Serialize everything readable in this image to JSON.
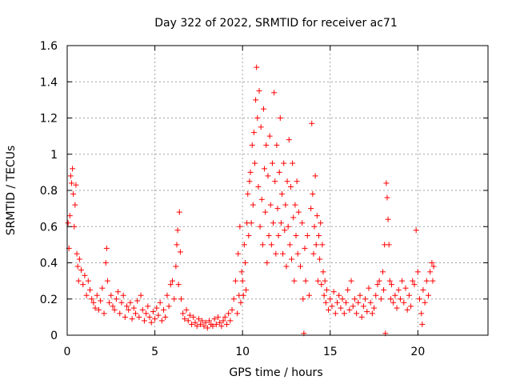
{
  "chart_data": {
    "type": "scatter",
    "title": "Day 322 of 2022, SRMTID for receiver ac71",
    "xlabel": "GPS time / hours",
    "ylabel": "SRMTID / TECUs",
    "xlim": [
      0,
      24
    ],
    "ylim": [
      0,
      1.6
    ],
    "xticks": [
      0,
      5,
      10,
      15,
      20
    ],
    "yticks": [
      0,
      0.2,
      0.4,
      0.6,
      0.8,
      1,
      1.2,
      1.4,
      1.6
    ],
    "xtick_labels": [
      "0",
      "5",
      "10",
      "15",
      "20"
    ],
    "ytick_labels": [
      "0",
      "0.2",
      "0.4",
      "0.6",
      "0.8",
      "1",
      "1.2",
      "1.4",
      "1.6"
    ],
    "grid": true,
    "marker": "plus",
    "color": "#ff0000",
    "series": [
      {
        "name": "SRMTID",
        "points": [
          [
            0.05,
            0.62
          ],
          [
            0.1,
            0.48
          ],
          [
            0.15,
            0.66
          ],
          [
            0.2,
            0.88
          ],
          [
            0.25,
            0.84
          ],
          [
            0.3,
            0.92
          ],
          [
            0.35,
            0.78
          ],
          [
            0.4,
            0.6
          ],
          [
            0.45,
            0.72
          ],
          [
            0.5,
            0.83
          ],
          [
            0.55,
            0.45
          ],
          [
            0.6,
            0.38
          ],
          [
            0.65,
            0.3
          ],
          [
            0.7,
            0.42
          ],
          [
            0.8,
            0.36
          ],
          [
            0.9,
            0.28
          ],
          [
            1.0,
            0.33
          ],
          [
            1.1,
            0.22
          ],
          [
            1.2,
            0.3
          ],
          [
            1.3,
            0.25
          ],
          [
            1.4,
            0.2
          ],
          [
            1.5,
            0.18
          ],
          [
            1.6,
            0.15
          ],
          [
            1.7,
            0.22
          ],
          [
            1.8,
            0.14
          ],
          [
            1.9,
            0.19
          ],
          [
            2.0,
            0.26
          ],
          [
            2.1,
            0.12
          ],
          [
            2.2,
            0.4
          ],
          [
            2.25,
            0.48
          ],
          [
            2.3,
            0.3
          ],
          [
            2.4,
            0.18
          ],
          [
            2.5,
            0.22
          ],
          [
            2.6,
            0.16
          ],
          [
            2.7,
            0.14
          ],
          [
            2.8,
            0.2
          ],
          [
            2.9,
            0.24
          ],
          [
            3.0,
            0.12
          ],
          [
            3.1,
            0.18
          ],
          [
            3.2,
            0.22
          ],
          [
            3.3,
            0.1
          ],
          [
            3.4,
            0.16
          ],
          [
            3.5,
            0.14
          ],
          [
            3.6,
            0.18
          ],
          [
            3.7,
            0.09
          ],
          [
            3.8,
            0.15
          ],
          [
            3.9,
            0.12
          ],
          [
            4.0,
            0.19
          ],
          [
            4.1,
            0.1
          ],
          [
            4.2,
            0.22
          ],
          [
            4.3,
            0.14
          ],
          [
            4.4,
            0.08
          ],
          [
            4.5,
            0.12
          ],
          [
            4.6,
            0.16
          ],
          [
            4.7,
            0.1
          ],
          [
            4.8,
            0.07
          ],
          [
            4.9,
            0.13
          ],
          [
            5.0,
            0.09
          ],
          [
            5.1,
            0.15
          ],
          [
            5.2,
            0.11
          ],
          [
            5.3,
            0.18
          ],
          [
            5.4,
            0.08
          ],
          [
            5.5,
            0.14
          ],
          [
            5.6,
            0.1
          ],
          [
            5.7,
            0.22
          ],
          [
            5.8,
            0.16
          ],
          [
            5.9,
            0.28
          ],
          [
            6.0,
            0.3
          ],
          [
            6.1,
            0.2
          ],
          [
            6.2,
            0.38
          ],
          [
            6.25,
            0.5
          ],
          [
            6.3,
            0.58
          ],
          [
            6.35,
            0.28
          ],
          [
            6.4,
            0.68
          ],
          [
            6.45,
            0.46
          ],
          [
            6.5,
            0.2
          ],
          [
            6.6,
            0.12
          ],
          [
            6.7,
            0.09
          ],
          [
            6.8,
            0.14
          ],
          [
            6.9,
            0.08
          ],
          [
            7.0,
            0.11
          ],
          [
            7.1,
            0.06
          ],
          [
            7.2,
            0.1
          ],
          [
            7.3,
            0.07
          ],
          [
            7.4,
            0.05
          ],
          [
            7.5,
            0.09
          ],
          [
            7.6,
            0.06
          ],
          [
            7.7,
            0.08
          ],
          [
            7.8,
            0.05
          ],
          [
            7.9,
            0.07
          ],
          [
            8.0,
            0.04
          ],
          [
            8.1,
            0.08
          ],
          [
            8.2,
            0.06
          ],
          [
            8.3,
            0.05
          ],
          [
            8.4,
            0.09
          ],
          [
            8.5,
            0.06
          ],
          [
            8.6,
            0.1
          ],
          [
            8.7,
            0.07
          ],
          [
            8.8,
            0.05
          ],
          [
            8.9,
            0.08
          ],
          [
            9.0,
            0.1
          ],
          [
            9.1,
            0.06
          ],
          [
            9.2,
            0.12
          ],
          [
            9.3,
            0.08
          ],
          [
            9.4,
            0.14
          ],
          [
            9.5,
            0.2
          ],
          [
            9.6,
            0.3
          ],
          [
            9.7,
            0.12
          ],
          [
            9.75,
            0.45
          ],
          [
            9.8,
            0.22
          ],
          [
            9.85,
            0.6
          ],
          [
            9.9,
            0.18
          ],
          [
            9.95,
            0.35
          ],
          [
            10.0,
            0.3
          ],
          [
            10.05,
            0.22
          ],
          [
            10.1,
            0.5
          ],
          [
            10.15,
            0.4
          ],
          [
            10.2,
            0.25
          ],
          [
            10.25,
            0.62
          ],
          [
            10.3,
            0.78
          ],
          [
            10.35,
            0.55
          ],
          [
            10.4,
            0.85
          ],
          [
            10.45,
            0.9
          ],
          [
            10.5,
            0.62
          ],
          [
            10.55,
            1.05
          ],
          [
            10.6,
            0.72
          ],
          [
            10.65,
            1.12
          ],
          [
            10.7,
            0.95
          ],
          [
            10.75,
            1.3
          ],
          [
            10.8,
            1.48
          ],
          [
            10.85,
            1.2
          ],
          [
            10.9,
            0.82
          ],
          [
            10.95,
            1.35
          ],
          [
            11.0,
            0.6
          ],
          [
            11.05,
            1.15
          ],
          [
            11.1,
            0.75
          ],
          [
            11.15,
            0.5
          ],
          [
            11.2,
            1.25
          ],
          [
            11.25,
            0.92
          ],
          [
            11.3,
            0.68
          ],
          [
            11.35,
            1.05
          ],
          [
            11.4,
            0.4
          ],
          [
            11.45,
            0.88
          ],
          [
            11.5,
            0.55
          ],
          [
            11.55,
            1.1
          ],
          [
            11.6,
            0.72
          ],
          [
            11.65,
            0.5
          ],
          [
            11.7,
            0.95
          ],
          [
            11.75,
            0.62
          ],
          [
            11.8,
            1.34
          ],
          [
            11.85,
            0.85
          ],
          [
            11.9,
            0.45
          ],
          [
            11.95,
            1.05
          ],
          [
            12.0,
            0.7
          ],
          [
            12.05,
            0.55
          ],
          [
            12.1,
            0.9
          ],
          [
            12.15,
            1.2
          ],
          [
            12.2,
            0.62
          ],
          [
            12.25,
            0.78
          ],
          [
            12.3,
            0.45
          ],
          [
            12.35,
            0.95
          ],
          [
            12.4,
            0.58
          ],
          [
            12.45,
            0.72
          ],
          [
            12.5,
            0.38
          ],
          [
            12.55,
            0.85
          ],
          [
            12.6,
            0.6
          ],
          [
            12.65,
            1.08
          ],
          [
            12.7,
            0.5
          ],
          [
            12.75,
            0.82
          ],
          [
            12.8,
            0.42
          ],
          [
            12.85,
            0.95
          ],
          [
            12.9,
            0.65
          ],
          [
            12.95,
            0.3
          ],
          [
            13.0,
            0.72
          ],
          [
            13.05,
            0.55
          ],
          [
            13.1,
            0.85
          ],
          [
            13.15,
            0.45
          ],
          [
            13.2,
            0.68
          ],
          [
            13.3,
            0.38
          ],
          [
            13.4,
            0.62
          ],
          [
            13.45,
            0.2
          ],
          [
            13.5,
            0.01
          ],
          [
            13.55,
            0.48
          ],
          [
            13.6,
            0.3
          ],
          [
            13.7,
            0.55
          ],
          [
            13.8,
            0.22
          ],
          [
            13.9,
            0.7
          ],
          [
            13.95,
            1.17
          ],
          [
            14.0,
            0.78
          ],
          [
            14.05,
            0.45
          ],
          [
            14.1,
            0.6
          ],
          [
            14.15,
            0.88
          ],
          [
            14.2,
            0.5
          ],
          [
            14.25,
            0.66
          ],
          [
            14.3,
            0.3
          ],
          [
            14.35,
            0.55
          ],
          [
            14.4,
            0.42
          ],
          [
            14.45,
            0.62
          ],
          [
            14.5,
            0.28
          ],
          [
            14.55,
            0.5
          ],
          [
            14.6,
            0.35
          ],
          [
            14.65,
            0.22
          ],
          [
            14.7,
            0.3
          ],
          [
            14.75,
            0.18
          ],
          [
            14.8,
            0.25
          ],
          [
            14.9,
            0.14
          ],
          [
            15.0,
            0.2
          ],
          [
            15.1,
            0.16
          ],
          [
            15.2,
            0.24
          ],
          [
            15.3,
            0.12
          ],
          [
            15.4,
            0.18
          ],
          [
            15.5,
            0.22
          ],
          [
            15.6,
            0.15
          ],
          [
            15.7,
            0.2
          ],
          [
            15.8,
            0.12
          ],
          [
            15.9,
            0.18
          ],
          [
            16.0,
            0.25
          ],
          [
            16.1,
            0.14
          ],
          [
            16.2,
            0.3
          ],
          [
            16.3,
            0.16
          ],
          [
            16.4,
            0.2
          ],
          [
            16.5,
            0.12
          ],
          [
            16.6,
            0.18
          ],
          [
            16.7,
            0.22
          ],
          [
            16.8,
            0.1
          ],
          [
            16.9,
            0.16
          ],
          [
            17.0,
            0.2
          ],
          [
            17.1,
            0.13
          ],
          [
            17.2,
            0.26
          ],
          [
            17.3,
            0.18
          ],
          [
            17.4,
            0.12
          ],
          [
            17.5,
            0.15
          ],
          [
            17.6,
            0.22
          ],
          [
            17.7,
            0.28
          ],
          [
            17.8,
            0.3
          ],
          [
            17.9,
            0.2
          ],
          [
            18.0,
            0.35
          ],
          [
            18.05,
            0.25
          ],
          [
            18.1,
            0.5
          ],
          [
            18.15,
            0.01
          ],
          [
            18.2,
            0.84
          ],
          [
            18.25,
            0.76
          ],
          [
            18.3,
            0.64
          ],
          [
            18.35,
            0.5
          ],
          [
            18.4,
            0.3
          ],
          [
            18.45,
            0.2
          ],
          [
            18.5,
            0.28
          ],
          [
            18.6,
            0.18
          ],
          [
            18.7,
            0.22
          ],
          [
            18.8,
            0.15
          ],
          [
            18.9,
            0.25
          ],
          [
            19.0,
            0.2
          ],
          [
            19.1,
            0.3
          ],
          [
            19.2,
            0.18
          ],
          [
            19.3,
            0.26
          ],
          [
            19.4,
            0.14
          ],
          [
            19.5,
            0.22
          ],
          [
            19.6,
            0.16
          ],
          [
            19.7,
            0.3
          ],
          [
            19.8,
            0.28
          ],
          [
            19.9,
            0.58
          ],
          [
            20.0,
            0.35
          ],
          [
            20.1,
            0.2
          ],
          [
            20.2,
            0.12
          ],
          [
            20.25,
            0.06
          ],
          [
            20.3,
            0.25
          ],
          [
            20.4,
            0.18
          ],
          [
            20.5,
            0.3
          ],
          [
            20.6,
            0.22
          ],
          [
            20.7,
            0.35
          ],
          [
            20.8,
            0.4
          ],
          [
            20.85,
            0.3
          ],
          [
            20.9,
            0.38
          ]
        ]
      }
    ]
  }
}
